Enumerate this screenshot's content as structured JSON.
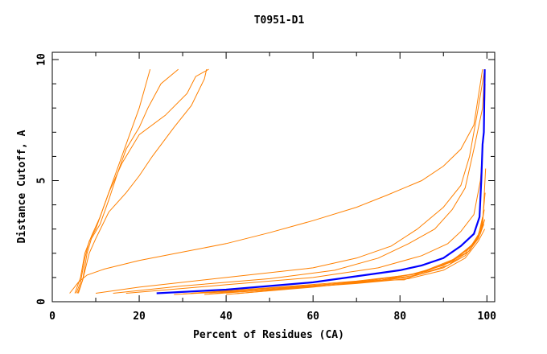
{
  "chart_data": {
    "type": "line",
    "title": "T0951-D1",
    "xlabel": "Percent of Residues (CA)",
    "ylabel": "Distance Cutoff, A",
    "xlim": [
      0,
      101.8
    ],
    "ylim": [
      0,
      10.3
    ],
    "x_ticks": [
      "0",
      "20",
      "40",
      "60",
      "80",
      "100"
    ],
    "y_ticks": [
      "0",
      "5",
      "10"
    ],
    "grid": false,
    "colors": {
      "highlight": "#0000ff",
      "others": "#ff8000"
    },
    "series": [
      {
        "highlight": true,
        "points": [
          [
            24,
            0.35
          ],
          [
            40,
            0.5
          ],
          [
            60,
            0.8
          ],
          [
            70,
            1.05
          ],
          [
            80,
            1.3
          ],
          [
            85,
            1.5
          ],
          [
            90,
            1.8
          ],
          [
            94,
            2.3
          ],
          [
            97,
            2.8
          ],
          [
            98.3,
            3.5
          ],
          [
            98.7,
            5
          ],
          [
            99,
            6.5
          ],
          [
            99.3,
            7
          ],
          [
            99.5,
            9.6
          ]
        ]
      },
      {
        "points": [
          [
            5.5,
            0.35
          ],
          [
            6.5,
            0.8
          ],
          [
            7.5,
            1.8
          ],
          [
            8.5,
            2.5
          ],
          [
            10,
            3
          ],
          [
            12,
            4
          ],
          [
            14,
            5
          ],
          [
            16,
            6
          ],
          [
            18,
            7
          ],
          [
            20,
            8
          ],
          [
            22.5,
            9.6
          ]
        ]
      },
      {
        "points": [
          [
            5.8,
            0.35
          ],
          [
            7,
            0.9
          ],
          [
            8,
            2
          ],
          [
            9,
            2.6
          ],
          [
            11,
            3.2
          ],
          [
            13,
            4.2
          ],
          [
            15,
            5.3
          ],
          [
            17,
            6.3
          ],
          [
            20,
            7.2
          ],
          [
            22,
            8
          ],
          [
            25,
            9
          ],
          [
            29,
            9.6
          ]
        ]
      },
      {
        "points": [
          [
            5.2,
            0.35
          ],
          [
            6.5,
            1
          ],
          [
            7.5,
            2
          ],
          [
            9,
            2.7
          ],
          [
            11,
            3.5
          ],
          [
            13,
            4.5
          ],
          [
            16,
            5.7
          ],
          [
            20,
            6.9
          ],
          [
            26,
            7.7
          ],
          [
            31,
            8.6
          ],
          [
            33,
            9.3
          ],
          [
            36,
            9.6
          ]
        ]
      },
      {
        "points": [
          [
            6,
            0.35
          ],
          [
            7,
            0.9
          ],
          [
            8.5,
            2
          ],
          [
            10,
            2.6
          ],
          [
            13,
            3.7
          ],
          [
            17,
            4.5
          ],
          [
            20,
            5.2
          ],
          [
            23,
            6
          ],
          [
            28,
            7.2
          ],
          [
            32,
            8.1
          ],
          [
            35,
            9.2
          ],
          [
            35.5,
            9.6
          ]
        ]
      },
      {
        "points": [
          [
            4,
            0.35
          ],
          [
            6,
            0.8
          ],
          [
            8,
            1.1
          ],
          [
            12,
            1.35
          ],
          [
            20,
            1.7
          ],
          [
            30,
            2.05
          ],
          [
            40,
            2.4
          ],
          [
            50,
            2.85
          ],
          [
            60,
            3.35
          ],
          [
            70,
            3.9
          ],
          [
            77,
            4.4
          ],
          [
            85,
            5
          ],
          [
            90,
            5.6
          ],
          [
            94,
            6.3
          ],
          [
            97,
            7.3
          ],
          [
            99,
            9.6
          ]
        ]
      },
      {
        "points": [
          [
            10,
            0.35
          ],
          [
            20,
            0.6
          ],
          [
            40,
            1.0
          ],
          [
            60,
            1.4
          ],
          [
            70,
            1.8
          ],
          [
            78,
            2.3
          ],
          [
            84,
            3.0
          ],
          [
            90,
            3.9
          ],
          [
            94,
            4.8
          ],
          [
            96,
            6.0
          ],
          [
            98,
            8
          ],
          [
            99.5,
            9.6
          ]
        ]
      },
      {
        "points": [
          [
            14,
            0.35
          ],
          [
            30,
            0.65
          ],
          [
            50,
            0.95
          ],
          [
            65,
            1.3
          ],
          [
            75,
            1.8
          ],
          [
            82,
            2.4
          ],
          [
            88,
            3.0
          ],
          [
            92,
            3.8
          ],
          [
            95,
            4.7
          ],
          [
            97,
            6.3
          ],
          [
            99,
            8
          ],
          [
            99.5,
            9.6
          ]
        ]
      },
      {
        "points": [
          [
            17,
            0.35
          ],
          [
            40,
            0.7
          ],
          [
            60,
            1.0
          ],
          [
            75,
            1.4
          ],
          [
            85,
            1.9
          ],
          [
            91,
            2.4
          ],
          [
            94,
            2.9
          ],
          [
            97,
            3.6
          ],
          [
            98.5,
            5
          ],
          [
            99.3,
            7
          ],
          [
            99.6,
            9
          ]
        ]
      },
      {
        "points": [
          [
            28,
            0.3
          ],
          [
            50,
            0.5
          ],
          [
            70,
            0.75
          ],
          [
            82,
            0.95
          ],
          [
            90,
            1.3
          ],
          [
            95,
            1.8
          ],
          [
            98,
            2.5
          ],
          [
            99.5,
            3
          ]
        ]
      },
      {
        "points": [
          [
            30,
            0.32
          ],
          [
            50,
            0.55
          ],
          [
            70,
            0.8
          ],
          [
            82,
            1.0
          ],
          [
            90,
            1.4
          ],
          [
            95,
            1.9
          ],
          [
            98,
            2.6
          ],
          [
            99.3,
            3.2
          ]
        ]
      },
      {
        "points": [
          [
            32,
            0.35
          ],
          [
            52,
            0.6
          ],
          [
            70,
            0.85
          ],
          [
            82,
            1.1
          ],
          [
            90,
            1.5
          ],
          [
            95,
            2.0
          ],
          [
            98,
            2.7
          ],
          [
            99,
            3.5
          ]
        ]
      },
      {
        "points": [
          [
            35,
            0.3
          ],
          [
            55,
            0.55
          ],
          [
            72,
            0.8
          ],
          [
            84,
            1.1
          ],
          [
            91,
            1.5
          ],
          [
            96,
            2.1
          ],
          [
            98.5,
            2.8
          ],
          [
            99.5,
            3.4
          ]
        ]
      },
      {
        "points": [
          [
            36,
            0.32
          ],
          [
            56,
            0.6
          ],
          [
            72,
            0.85
          ],
          [
            84,
            1.15
          ],
          [
            91,
            1.6
          ],
          [
            96,
            2.2
          ],
          [
            98.5,
            2.9
          ],
          [
            99.4,
            3.8
          ]
        ]
      },
      {
        "points": [
          [
            38,
            0.35
          ],
          [
            58,
            0.62
          ],
          [
            74,
            0.9
          ],
          [
            85,
            1.2
          ],
          [
            92,
            1.65
          ],
          [
            96.5,
            2.3
          ],
          [
            98.8,
            3
          ],
          [
            99.6,
            4.5
          ]
        ]
      },
      {
        "points": [
          [
            40,
            0.3
          ],
          [
            60,
            0.6
          ],
          [
            76,
            0.9
          ],
          [
            86,
            1.25
          ],
          [
            92,
            1.7
          ],
          [
            97,
            2.4
          ],
          [
            99,
            3.1
          ],
          [
            99.7,
            5.5
          ]
        ]
      },
      {
        "points": [
          [
            42,
            0.33
          ],
          [
            62,
            0.65
          ],
          [
            78,
            0.9
          ],
          [
            81,
            0.9
          ],
          [
            86,
            1.3
          ],
          [
            93,
            1.8
          ],
          [
            97.5,
            2.5
          ],
          [
            99,
            3.3
          ]
        ]
      }
    ]
  }
}
